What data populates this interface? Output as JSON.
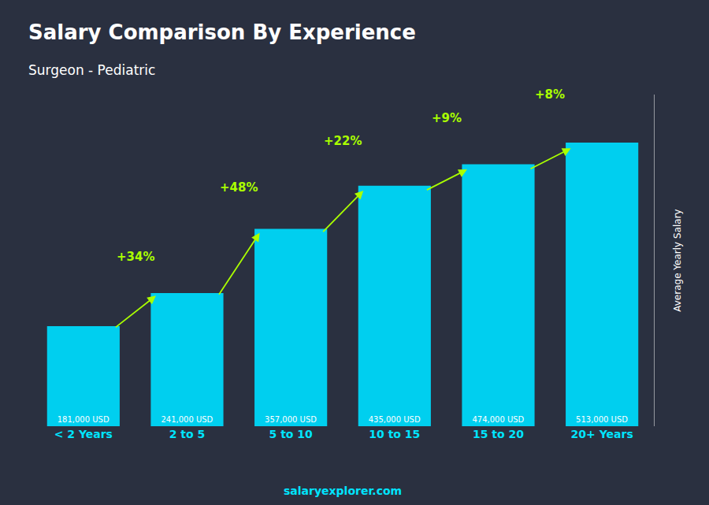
{
  "chart_data": {
    "type": "bar",
    "title": "Salary Comparison By Experience",
    "subtitle": "Surgeon - Pediatric",
    "categories": [
      "< 2 Years",
      "2 to 5",
      "5 to 10",
      "10 to 15",
      "15 to 20",
      "20+ Years"
    ],
    "values": [
      181000,
      241000,
      357000,
      435000,
      474000,
      513000
    ],
    "value_labels": [
      "181,000 USD",
      "241,000 USD",
      "357,000 USD",
      "435,000 USD",
      "474,000 USD",
      "513,000 USD"
    ],
    "data_labels": true,
    "color": "#00CFEF",
    "annotations": [
      {
        "text": "+34%",
        "color": "#aaff00"
      },
      {
        "text": "+48%",
        "color": "#aaff00"
      },
      {
        "text": "+22%",
        "color": "#aaff00"
      },
      {
        "text": "+9%",
        "color": "#aaff00"
      },
      {
        "text": "+8%",
        "color": "#aaff00"
      }
    ],
    "ylabel": "Average Yearly Salary",
    "footer": "salaryexplorer.com",
    "ylim": [
      0,
      600000
    ],
    "grid": false,
    "tick_labels": "x"
  }
}
